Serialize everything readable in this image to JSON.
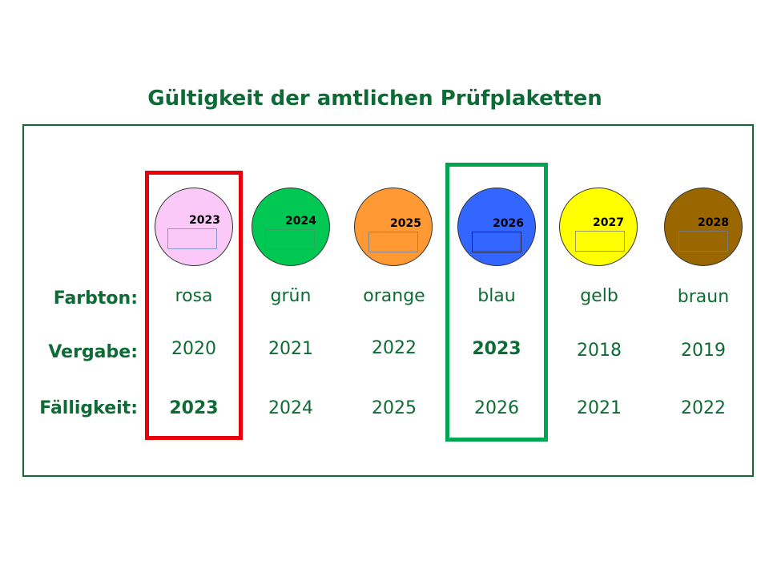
{
  "title": "Gültigkeit der amtlichen Prüfplaketten",
  "row_labels": {
    "farbton": "Farbton:",
    "vergabe": "Vergabe:",
    "faelligkeit": "Fälligkeit:"
  },
  "columns": [
    {
      "plakette_year": "2023",
      "color": "#fbc9f7",
      "farbton": "rosa",
      "vergabe": "2020",
      "faelligkeit": "2023"
    },
    {
      "plakette_year": "2024",
      "color": "#00c853",
      "farbton": "grün",
      "vergabe": "2021",
      "faelligkeit": "2024"
    },
    {
      "plakette_year": "2025",
      "color": "#ff9933",
      "farbton": "orange",
      "vergabe": "2022",
      "faelligkeit": "2025"
    },
    {
      "plakette_year": "2026",
      "color": "#3366ff",
      "farbton": "blau",
      "vergabe": "2023",
      "faelligkeit": "2026"
    },
    {
      "plakette_year": "2027",
      "color": "#ffff00",
      "farbton": "gelb",
      "vergabe": "2018",
      "faelligkeit": "2021"
    },
    {
      "plakette_year": "2028",
      "color": "#996600",
      "farbton": "braun",
      "vergabe": "2019",
      "faelligkeit": "2022"
    }
  ],
  "highlights": {
    "red_color": "#e8000b",
    "green_color": "#00a651",
    "text_color": "#0e6b35"
  }
}
